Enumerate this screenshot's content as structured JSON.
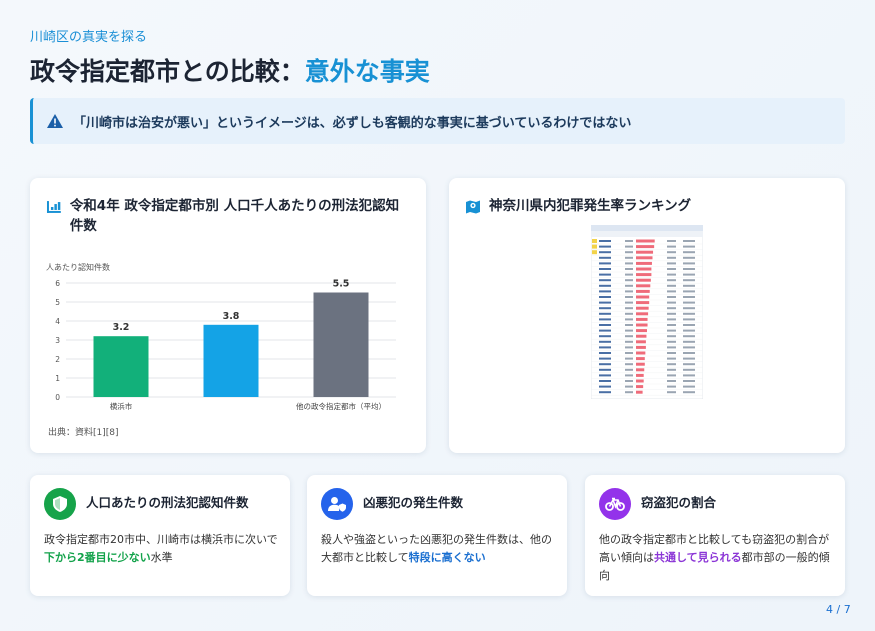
{
  "header": {
    "eyebrow": "川崎区の真実を探る",
    "title_main": "政令指定都市との比較：",
    "title_accent": "意外な事実"
  },
  "callout": {
    "text": "「川崎市は治安が悪い」というイメージは、必ずしも客観的な事実に基づいているわけではない"
  },
  "chart_card": {
    "title": "令和4年 政令指定都市別 人口千人あたりの刑法犯認知件数",
    "source": "出典：資料[1][8]"
  },
  "chart_data": {
    "type": "bar",
    "ylabel": "人あたり認知件数",
    "ylim": [
      0,
      6
    ],
    "yticks": [
      "0",
      "1",
      "2",
      "3",
      "4",
      "5",
      "6"
    ],
    "categories": [
      "横浜市",
      "",
      "他の政令指定都市（平均）"
    ],
    "values": [
      3.2,
      3.8,
      5.5
    ],
    "value_labels": [
      "3.2",
      "3.8",
      "5.5"
    ],
    "colors": [
      "#12b07a",
      "#14a3e6",
      "#6b7280"
    ],
    "grid": true
  },
  "ranking_card": {
    "title": "神奈川県内犯罪発生率ランキング"
  },
  "cards": [
    {
      "title": "人口あたりの刑法犯認知件数",
      "body_1": "政令指定都市20市中、川崎市は横浜市に次いで",
      "highlight": "下から2番目に少ない",
      "body_2": "水準",
      "color": "#16a34a"
    },
    {
      "title": "凶悪犯の発生件数",
      "body_1": "殺人や強盗といった凶悪犯の発生件数は、他の大都市と比較して",
      "highlight": "特段に高くない",
      "body_2": "",
      "color": "#2563eb"
    },
    {
      "title": "窃盗犯の割合",
      "body_1": "他の政令指定都市と比較しても窃盗犯の割合が高い傾向は",
      "highlight": "共通して見られる",
      "body_2": "都市部の一般的傾向",
      "color": "#9333ea"
    }
  ],
  "footer": {
    "page": "4 / 7"
  }
}
